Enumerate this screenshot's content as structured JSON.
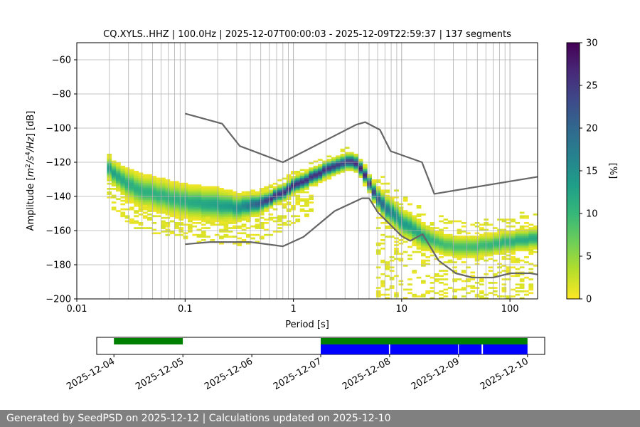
{
  "chart_data": {
    "type": "heatmap",
    "title": "CQ.XYLS..HHZ | 100.0Hz | 2025-12-07T00:00:03 - 2025-12-09T22:59:37 | 137 segments",
    "xlabel": "Period [s]",
    "ylabel": "Amplitude [m²/s⁴/Hz] [dB]",
    "ylabel_parts": [
      "Amplitude [",
      "m",
      "2",
      "/",
      "s",
      "4",
      "/Hz",
      "] [dB]"
    ],
    "x_scale": "log",
    "xlim": [
      0.01,
      180
    ],
    "ylim": [
      -200,
      -50
    ],
    "x_ticks": [
      0.01,
      0.1,
      1,
      10,
      100
    ],
    "x_tick_labels": [
      "0.01",
      "0.1",
      "1",
      "10",
      "100"
    ],
    "y_ticks": [
      -200,
      -180,
      -160,
      -140,
      -120,
      -100,
      -80,
      -60
    ],
    "y_tick_labels": [
      "−200",
      "−180",
      "−160",
      "−140",
      "−120",
      "−100",
      "−80",
      "−60"
    ],
    "colorbar": {
      "label": "[%]",
      "range": [
        0,
        30
      ],
      "ticks": [
        0,
        5,
        10,
        15,
        20,
        25,
        30
      ],
      "tick_labels": [
        "0",
        "5",
        "10",
        "15",
        "20",
        "25",
        "30"
      ],
      "colors": [
        "#fde725",
        "#b5de2b",
        "#6ece58",
        "#35b779",
        "#1f9e89",
        "#26828e",
        "#31688e",
        "#3e4989",
        "#482878",
        "#440154"
      ]
    },
    "mode": {
      "name": "dominant PSD band",
      "x": [
        0.019,
        0.025,
        0.035,
        0.05,
        0.08,
        0.12,
        0.2,
        0.3,
        0.45,
        0.6,
        0.8,
        1.0,
        1.4,
        2.0,
        2.8,
        3.5,
        4.2,
        5.0,
        6.0,
        8.0,
        10,
        15,
        20,
        30,
        40,
        60,
        100,
        180
      ],
      "y": [
        -123,
        -130,
        -136,
        -139,
        -142,
        -144,
        -145.5,
        -147,
        -145,
        -142,
        -138,
        -134,
        -130,
        -125,
        -121,
        -119.5,
        -124,
        -133,
        -142,
        -150,
        -155,
        -163,
        -167,
        -170,
        -170.5,
        -169,
        -167,
        -165
      ],
      "width_db": [
        4,
        5,
        6,
        6,
        6,
        6,
        6,
        5,
        4,
        3,
        3,
        3,
        3,
        3,
        3,
        3,
        3,
        3,
        4,
        5,
        5,
        5,
        4,
        4,
        4,
        4,
        4,
        4
      ],
      "peak_percent": [
        14,
        12,
        11,
        11,
        11,
        12,
        13,
        14,
        20,
        26,
        26,
        26,
        26,
        26,
        24,
        26,
        28,
        26,
        22,
        16,
        14,
        12,
        10,
        9,
        9,
        10,
        11,
        12
      ]
    },
    "reference_curves": [
      {
        "name": "upper noise model",
        "color": "#666666",
        "x": [
          0.1,
          0.22,
          0.32,
          0.8,
          3.8,
          4.6,
          6.3,
          7.9,
          15.4,
          20,
          180
        ],
        "y": [
          -91.5,
          -97.4,
          -110.5,
          -120,
          -98,
          -96.5,
          -101,
          -113.5,
          -120,
          -138.5,
          -128.5
        ]
      },
      {
        "name": "lower noise model",
        "color": "#666666",
        "x": [
          0.1,
          0.17,
          0.4,
          0.8,
          1.24,
          2.4,
          4.3,
          5.0,
          6.0,
          10.0,
          12.0,
          15.6,
          21.9,
          31.6,
          45,
          70,
          101,
          154,
          180
        ],
        "y": [
          -168,
          -166.7,
          -166.7,
          -169.2,
          -163.7,
          -148.6,
          -141.1,
          -141.1,
          -149.2,
          -163.2,
          -166,
          -162.1,
          -177.5,
          -185,
          -187.5,
          -187.5,
          -185,
          -185,
          -185.7
        ]
      }
    ],
    "timeline": {
      "ticks": [
        "2025-12-04",
        "2025-12-05",
        "2025-12-06",
        "2025-12-07",
        "2025-12-08",
        "2025-12-09",
        "2025-12-10"
      ],
      "range": [
        "2025-12-03T18:00",
        "2025-12-10T06:00"
      ],
      "green_bars": [
        {
          "start": "2025-12-04T00:00",
          "end": "2025-12-05T00:00"
        },
        {
          "start": "2025-12-07T00:00",
          "end": "2025-12-10T00:00"
        }
      ],
      "blue_bars": [
        {
          "start": "2025-12-07T00:00",
          "end": "2025-12-07T23:45"
        },
        {
          "start": "2025-12-08T00:10",
          "end": "2025-12-08T23:50"
        },
        {
          "start": "2025-12-09T00:05",
          "end": "2025-12-09T08:00"
        },
        {
          "start": "2025-12-09T08:30",
          "end": "2025-12-10T00:00"
        }
      ],
      "colors": {
        "green": "#008000",
        "blue": "#0000ff"
      }
    }
  },
  "footer": {
    "text": "Generated by SeedPSD on 2025-12-12 | Calculations updated on 2025-12-10"
  }
}
